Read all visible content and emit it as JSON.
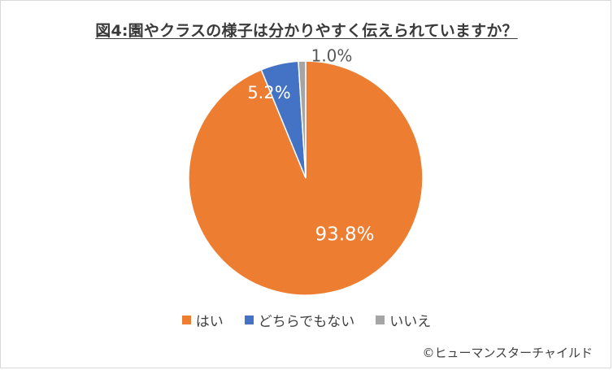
{
  "chart_data": {
    "type": "pie",
    "title": "図4:園やクラスの様子は分かりやすく伝えられていますか？",
    "categories": [
      "はい",
      "どちらでもない",
      "いいえ"
    ],
    "values": [
      93.8,
      5.2,
      1.0
    ],
    "labels": [
      "93.8%",
      "5.2%",
      "1.0%"
    ],
    "colors": [
      "#ed7d31",
      "#4472c4",
      "#a5a5a5"
    ],
    "legend_position": "bottom"
  },
  "credit": "©ヒューマンスターチャイルド"
}
